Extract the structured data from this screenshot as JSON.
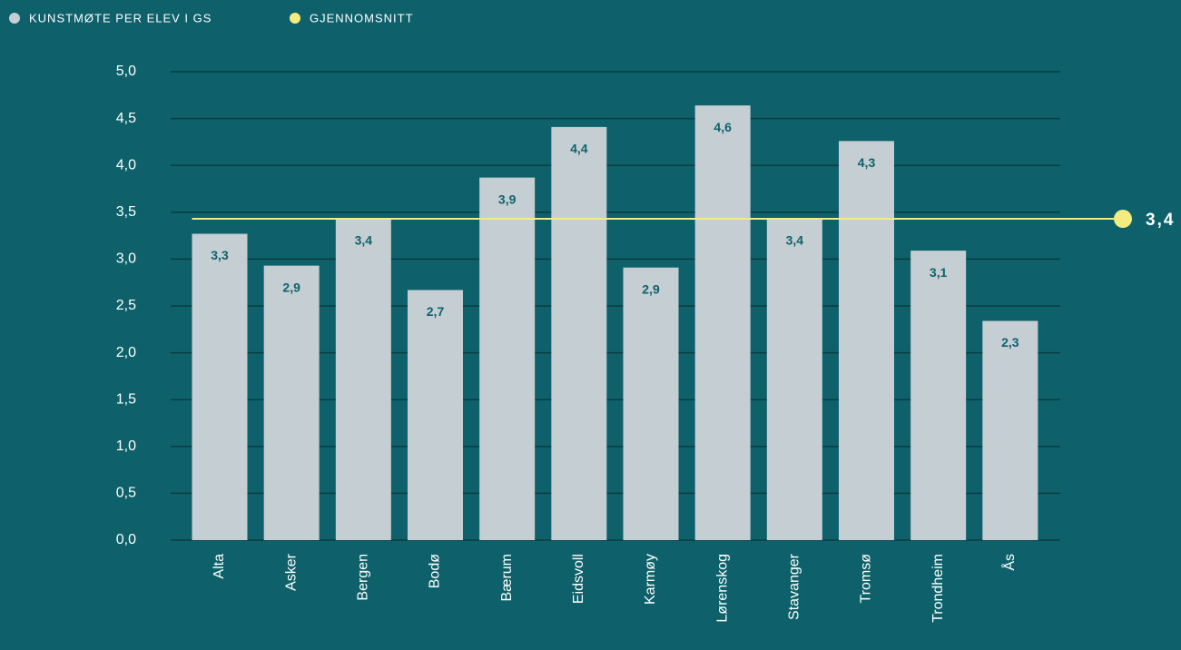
{
  "chart_data": {
    "type": "bar",
    "categories": [
      "Alta",
      "Asker",
      "Bergen",
      "Bodø",
      "Bærum",
      "Eidsvoll",
      "Karmøy",
      "Lørenskog",
      "Stavanger",
      "Tromsø",
      "Trondheim",
      "Ås"
    ],
    "series": [
      {
        "name": "KUNSTMØTE PER ELEV I GS",
        "color": "#c5ced3",
        "values": [
          3.27,
          2.93,
          3.43,
          2.67,
          3.87,
          4.41,
          2.91,
          4.64,
          3.43,
          4.26,
          3.09,
          2.34
        ],
        "value_labels": [
          "3,3",
          "2,9",
          "3,4",
          "2,7",
          "3,9",
          "4,4",
          "2,9",
          "4,6",
          "3,4",
          "4,3",
          "3,1",
          "2,3"
        ]
      }
    ],
    "average": {
      "name": "GJENNOMSNITT",
      "color": "#f5ec7f",
      "value": 3.43,
      "value_label": "3,4"
    },
    "ylim": [
      0,
      5
    ],
    "yticks": [
      {
        "value": 0,
        "label": "0,0"
      },
      {
        "value": 0.5,
        "label": "0,5"
      },
      {
        "value": 1,
        "label": "1,0"
      },
      {
        "value": 1.5,
        "label": "1,5"
      },
      {
        "value": 2,
        "label": "2,0"
      },
      {
        "value": 2.5,
        "label": "2,5"
      },
      {
        "value": 3,
        "label": "3,0"
      },
      {
        "value": 3.5,
        "label": "3,5"
      },
      {
        "value": 4,
        "label": "4,0"
      },
      {
        "value": 4.5,
        "label": "4,5"
      },
      {
        "value": 5,
        "label": "5,0"
      }
    ],
    "grid": true
  }
}
